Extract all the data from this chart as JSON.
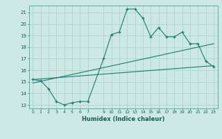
{
  "title": "",
  "xlabel": "Humidex (Indice chaleur)",
  "bg_color": "#cce9e5",
  "line_color": "#1a7a6e",
  "grid_color": "#add4cf",
  "xlim": [
    -0.5,
    23.5
  ],
  "ylim": [
    12.7,
    21.6
  ],
  "xticks": [
    0,
    1,
    2,
    3,
    4,
    5,
    6,
    7,
    9,
    10,
    11,
    12,
    13,
    14,
    15,
    16,
    17,
    18,
    19,
    20,
    21,
    22,
    23
  ],
  "yticks": [
    13,
    14,
    15,
    16,
    17,
    18,
    19,
    20,
    21
  ],
  "series1_x": [
    0,
    1,
    2,
    3,
    4,
    5,
    6,
    7,
    9,
    10,
    11,
    12,
    13,
    14,
    15,
    16,
    17,
    18,
    19,
    20,
    21,
    22,
    23
  ],
  "series1_y": [
    15.2,
    15.1,
    14.4,
    13.3,
    13.0,
    13.2,
    13.3,
    13.3,
    17.0,
    19.1,
    19.3,
    21.3,
    21.3,
    20.5,
    18.9,
    19.7,
    18.9,
    18.9,
    19.3,
    18.3,
    18.3,
    16.8,
    16.3
  ],
  "series2_x": [
    0,
    23
  ],
  "series2_y": [
    15.2,
    16.4
  ],
  "series3_x": [
    0,
    23
  ],
  "series3_y": [
    14.9,
    18.3
  ]
}
